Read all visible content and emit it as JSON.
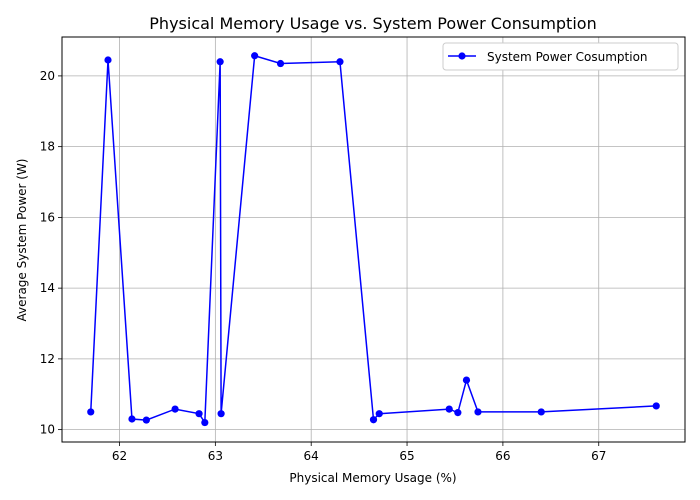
{
  "chart_data": {
    "type": "line",
    "title": "Physical Memory Usage vs. System Power Consumption",
    "xlabel": "Physical Memory Usage (%)",
    "ylabel": "Average System Power (W)",
    "xlim": [
      61.4,
      67.9
    ],
    "ylim": [
      9.65,
      21.1
    ],
    "xticks": [
      62,
      63,
      64,
      65,
      66,
      67
    ],
    "yticks": [
      10,
      12,
      14,
      16,
      18,
      20
    ],
    "grid": true,
    "legend_position": "top-right",
    "line_color": "#0000ff",
    "series": [
      {
        "name": "System Power Cosumption",
        "x": [
          61.7,
          61.88,
          62.13,
          62.28,
          62.58,
          62.83,
          62.89,
          63.05,
          63.06,
          63.41,
          63.68,
          64.3,
          64.65,
          64.71,
          65.44,
          65.53,
          65.62,
          65.74,
          66.4,
          67.6
        ],
        "y": [
          10.5,
          20.45,
          10.3,
          10.27,
          10.58,
          10.45,
          10.2,
          20.4,
          10.45,
          20.57,
          20.35,
          20.4,
          10.28,
          10.45,
          10.58,
          10.48,
          11.4,
          10.5,
          10.5,
          10.67
        ]
      }
    ]
  }
}
